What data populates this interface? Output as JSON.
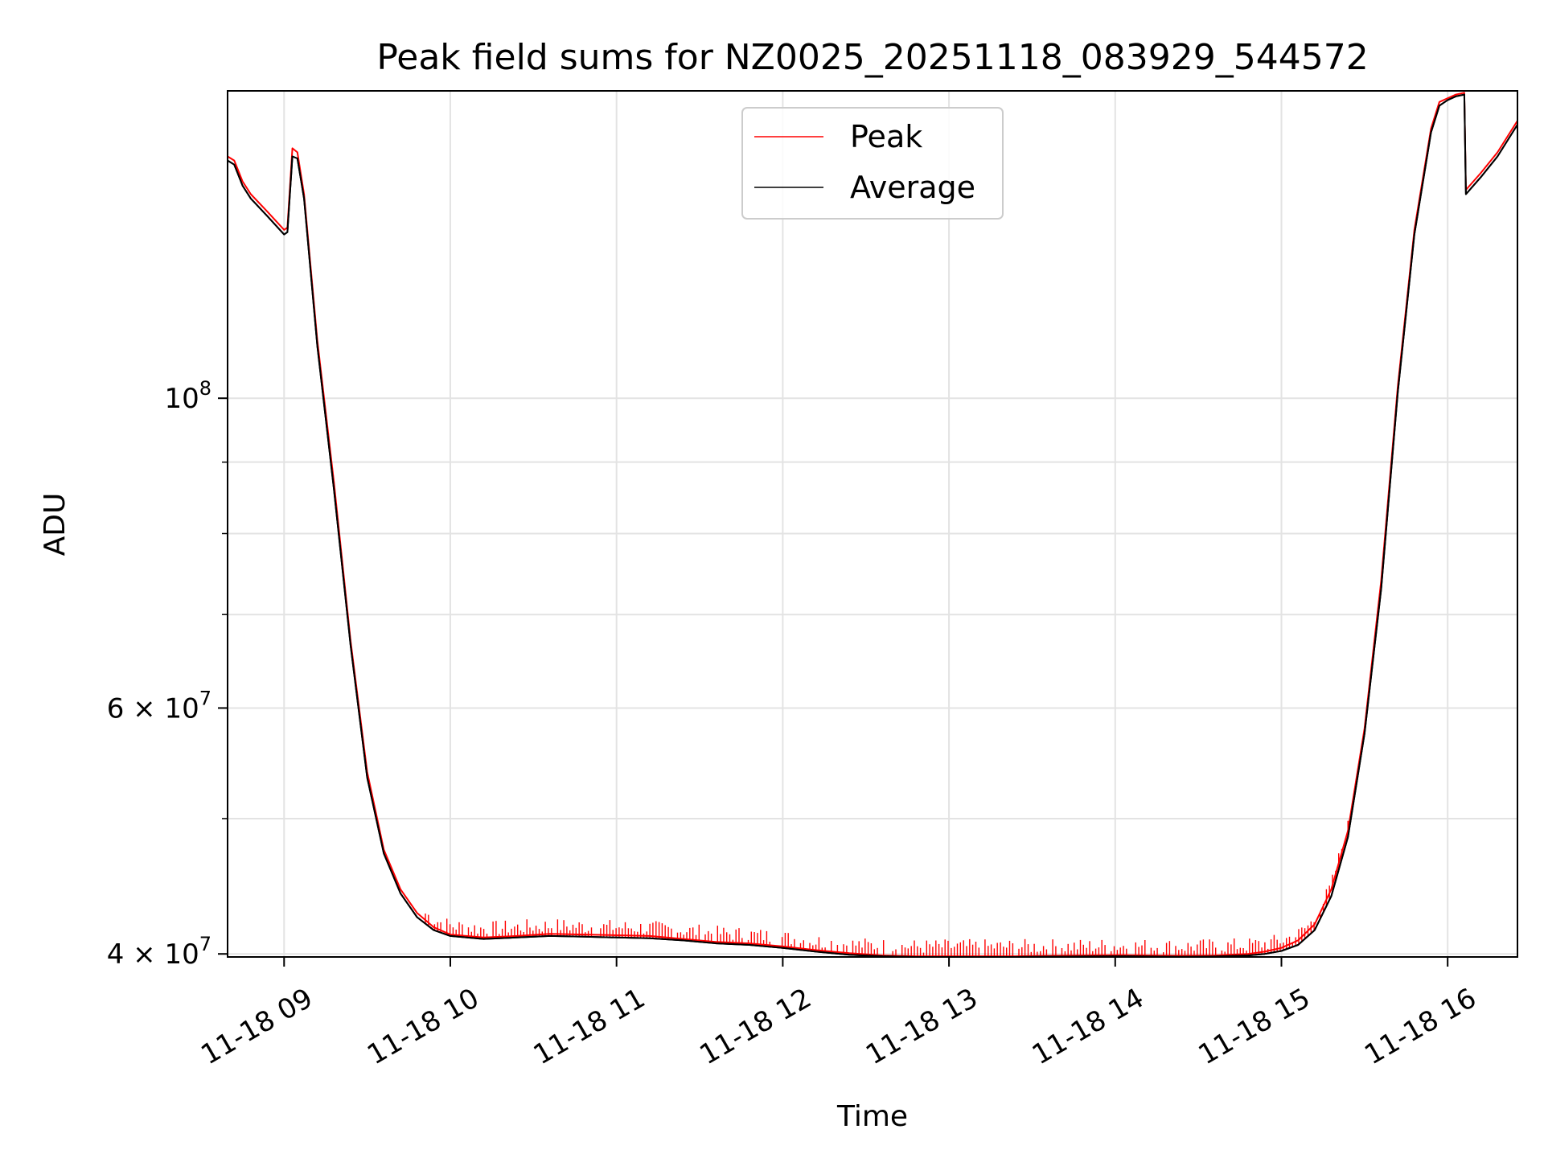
{
  "chart_data": {
    "type": "line",
    "title": "Peak field sums for NZ0025_20251118_083929_544572",
    "xlabel": "Time",
    "ylabel": "ADU",
    "y_scale": "log",
    "ylim": [
      39800000,
      166000000
    ],
    "xlim_hours": [
      8.66,
      16.42
    ],
    "grid": true,
    "legend_location": "upper center",
    "x_ticks": [
      {
        "value": 9,
        "label": "11-18 09"
      },
      {
        "value": 10,
        "label": "11-18 10"
      },
      {
        "value": 11,
        "label": "11-18 11"
      },
      {
        "value": 12,
        "label": "11-18 12"
      },
      {
        "value": 13,
        "label": "11-18 13"
      },
      {
        "value": 14,
        "label": "11-18 14"
      },
      {
        "value": 15,
        "label": "11-18 15"
      },
      {
        "value": 16,
        "label": "11-18 16"
      }
    ],
    "y_ticks_major": [
      {
        "value": 40000000,
        "mantissa": "4",
        "exp": "7",
        "has_mantissa": true
      },
      {
        "value": 60000000,
        "mantissa": "6",
        "exp": "7",
        "has_mantissa": true
      },
      {
        "value": 100000000,
        "mantissa": "",
        "exp": "8",
        "has_mantissa": false
      }
    ],
    "y_ticks_minor": [
      50000000,
      70000000,
      80000000,
      90000000
    ],
    "series": [
      {
        "name": "Peak",
        "color": "#ff0000",
        "x": [
          8.66,
          8.7,
          8.75,
          8.8,
          8.9,
          9.0,
          9.02,
          9.05,
          9.08,
          9.12,
          9.2,
          9.3,
          9.4,
          9.5,
          9.6,
          9.7,
          9.8,
          9.9,
          10.0,
          10.2,
          10.4,
          10.6,
          10.8,
          11.0,
          11.2,
          11.4,
          11.6,
          11.8,
          12.0,
          12.2,
          12.4,
          12.6,
          12.8,
          13.0,
          13.2,
          13.4,
          13.6,
          13.8,
          14.0,
          14.2,
          14.4,
          14.6,
          14.8,
          14.9,
          15.0,
          15.1,
          15.2,
          15.3,
          15.4,
          15.5,
          15.6,
          15.7,
          15.8,
          15.9,
          15.95,
          16.0,
          16.05,
          16.1,
          16.11,
          16.2,
          16.3,
          16.42
        ],
        "y": [
          149000000,
          148000000,
          143000000,
          140000000,
          136000000,
          132000000,
          132500000,
          151000000,
          150000000,
          140000000,
          110000000,
          87000000,
          67000000,
          54000000,
          47500000,
          44500000,
          42800000,
          41800000,
          41300000,
          41100000,
          41200000,
          41350000,
          41300000,
          41250000,
          41200000,
          41000000,
          40800000,
          40700000,
          40500000,
          40250000,
          40050000,
          39900000,
          39850000,
          39850000,
          39850000,
          39850000,
          39880000,
          39900000,
          39920000,
          39900000,
          39880000,
          39900000,
          40000000,
          40150000,
          40400000,
          40900000,
          42000000,
          44500000,
          49000000,
          58000000,
          74000000,
          102000000,
          132000000,
          156000000,
          163000000,
          164000000,
          165000000,
          165500000,
          141000000,
          145000000,
          150000000,
          158000000
        ]
      },
      {
        "name": "Average",
        "color": "#000000",
        "x": [
          8.66,
          8.7,
          8.75,
          8.8,
          8.9,
          9.0,
          9.02,
          9.05,
          9.08,
          9.12,
          9.2,
          9.3,
          9.4,
          9.5,
          9.6,
          9.7,
          9.8,
          9.9,
          10.0,
          10.2,
          10.4,
          10.6,
          10.8,
          11.0,
          11.2,
          11.4,
          11.6,
          11.8,
          12.0,
          12.2,
          12.4,
          12.6,
          12.8,
          13.0,
          13.2,
          13.4,
          13.6,
          13.8,
          14.0,
          14.2,
          14.4,
          14.6,
          14.8,
          14.9,
          15.0,
          15.1,
          15.2,
          15.3,
          15.4,
          15.5,
          15.6,
          15.7,
          15.8,
          15.9,
          15.95,
          16.0,
          16.05,
          16.1,
          16.11,
          16.2,
          16.3,
          16.42
        ],
        "y": [
          148000000,
          147000000,
          142000000,
          139000000,
          135000000,
          131000000,
          131500000,
          149000000,
          148500000,
          139000000,
          109000000,
          86000000,
          66500000,
          53500000,
          47200000,
          44200000,
          42500000,
          41600000,
          41200000,
          41000000,
          41100000,
          41200000,
          41150000,
          41100000,
          41050000,
          40900000,
          40700000,
          40600000,
          40400000,
          40150000,
          39950000,
          39850000,
          39800000,
          39800000,
          39800000,
          39800000,
          39820000,
          39830000,
          39850000,
          39830000,
          39810000,
          39830000,
          39900000,
          40000000,
          40200000,
          40600000,
          41600000,
          44000000,
          48500000,
          57500000,
          73000000,
          101000000,
          131000000,
          155000000,
          162000000,
          163500000,
          164500000,
          165000000,
          140000000,
          144000000,
          149000000,
          157000000
        ]
      }
    ]
  }
}
